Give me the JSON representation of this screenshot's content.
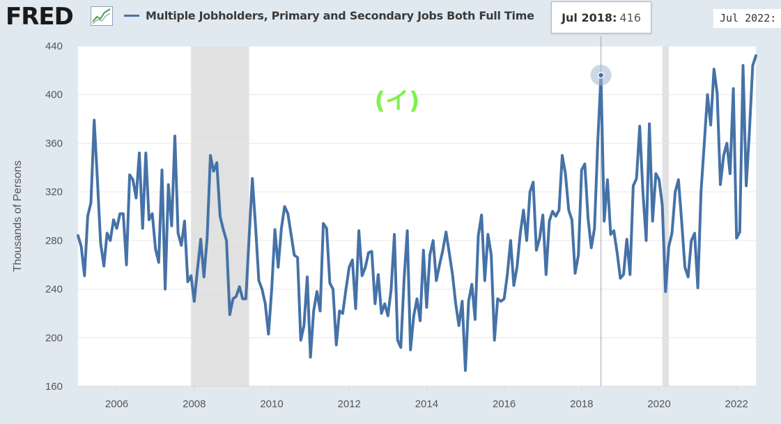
{
  "header": {
    "logo_text": "FRED",
    "legend_label": "Multiple Jobholders, Primary and Secondary Jobs Both Full Time",
    "tooltip_date": "Jul 2018:",
    "tooltip_value": "416",
    "tooltip_right_text": "Jul 2022:",
    "annotation": "(イ)"
  },
  "colors": {
    "series": "#4572a7",
    "recession": "#e1e1e1",
    "annotation": "#7cf24a",
    "grid": "#e6e6e6"
  },
  "chart_data": {
    "type": "line",
    "title": "Multiple Jobholders, Primary and Secondary Jobs Both Full Time",
    "ylabel": "Thousands of Persons",
    "xlabel": "",
    "ylim": [
      160,
      440
    ],
    "yticks": [
      160,
      200,
      240,
      280,
      320,
      360,
      400,
      440
    ],
    "xlim": [
      2005.0,
      2022.5
    ],
    "xticks": [
      2006,
      2008,
      2010,
      2012,
      2014,
      2016,
      2018,
      2020,
      2022
    ],
    "recessions": [
      [
        2007.917,
        2009.417
      ],
      [
        2020.083,
        2020.25
      ]
    ],
    "highlight": {
      "x": 2018.5,
      "y": 416,
      "label": "Jul 2018"
    },
    "series": [
      {
        "name": "Multiple Jobholders, Primary and Secondary Jobs Both Full Time",
        "x0": 2005.0,
        "step": 0.0833333,
        "values": [
          284,
          275,
          251,
          300,
          311,
          379,
          330,
          278,
          259,
          286,
          280,
          297,
          290,
          302,
          302,
          260,
          334,
          330,
          315,
          352,
          290,
          352,
          297,
          302,
          273,
          262,
          338,
          240,
          326,
          292,
          366,
          286,
          276,
          296,
          246,
          251,
          230,
          256,
          281,
          250,
          282,
          350,
          337,
          344,
          300,
          289,
          280,
          219,
          232,
          234,
          242,
          232,
          232,
          283,
          331,
          292,
          247,
          240,
          228,
          203,
          240,
          289,
          258,
          290,
          308,
          302,
          285,
          268,
          266,
          198,
          210,
          250,
          184,
          222,
          238,
          222,
          294,
          290,
          245,
          240,
          194,
          222,
          220,
          240,
          258,
          264,
          224,
          288,
          251,
          258,
          270,
          271,
          228,
          252,
          220,
          228,
          218,
          240,
          285,
          198,
          192,
          248,
          288,
          190,
          218,
          232,
          214,
          272,
          225,
          268,
          280,
          247,
          260,
          272,
          287,
          270,
          252,
          228,
          210,
          230,
          173,
          230,
          244,
          215,
          284,
          301,
          247,
          285,
          268,
          198,
          232,
          230,
          232,
          252,
          280,
          243,
          258,
          286,
          305,
          280,
          320,
          328,
          272,
          282,
          301,
          252,
          296,
          304,
          300,
          305,
          350,
          335,
          305,
          297,
          253,
          268,
          338,
          343,
          298,
          274,
          290,
          361,
          416,
          296,
          330,
          285,
          288,
          270,
          249,
          252,
          281,
          252,
          325,
          331,
          374,
          320,
          280,
          376,
          296,
          335,
          330,
          309,
          238,
          275,
          286,
          320,
          330,
          296,
          258,
          250,
          280,
          286,
          241,
          320,
          360,
          400,
          375,
          421,
          401,
          326,
          350,
          360,
          335,
          405,
          282,
          287,
          424,
          325,
          370,
          424,
          432
        ]
      }
    ]
  }
}
